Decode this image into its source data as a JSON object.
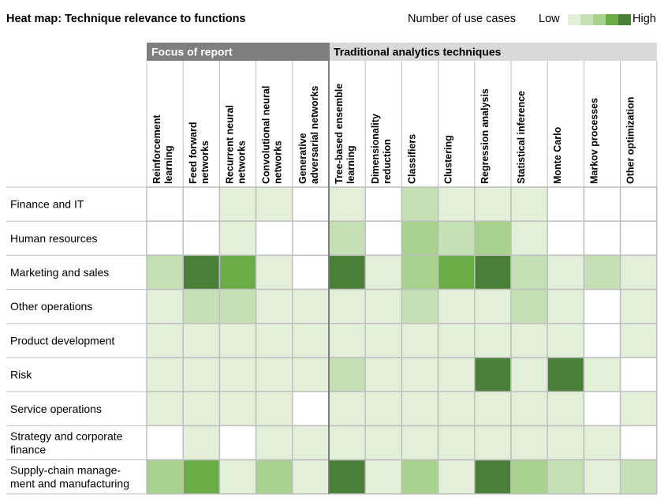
{
  "chart_data": {
    "type": "heatmap",
    "title": "Heat map: Technique relevance to functions",
    "legend": {
      "title": "Number of use cases",
      "low": "Low",
      "high": "High",
      "levels": [
        0,
        1,
        2,
        3,
        4,
        5
      ]
    },
    "column_groups": [
      {
        "label": "Focus of report",
        "span": 5
      },
      {
        "label": "Traditional analytics techniques",
        "span": 9
      }
    ],
    "columns": [
      [
        "Reinforcement",
        "learning"
      ],
      [
        "Feed forward",
        "networks"
      ],
      [
        "Recurrent neural",
        "networks"
      ],
      [
        "Convolutional neural",
        "networks"
      ],
      [
        "Generative",
        "adversarial networks"
      ],
      [
        "Tree-based ensemble",
        "learning"
      ],
      [
        "Dimensionality",
        "reduction"
      ],
      [
        "Classifiers"
      ],
      [
        "Clustering"
      ],
      [
        "Regression analysis"
      ],
      [
        "Statistical inference"
      ],
      [
        "Monte Carlo"
      ],
      [
        "Markov processes"
      ],
      [
        "Other optimization"
      ]
    ],
    "rows": [
      [
        "Finance and IT"
      ],
      [
        "Human resources"
      ],
      [
        "Marketing and sales"
      ],
      [
        "Other operations"
      ],
      [
        "Product development"
      ],
      [
        "Risk"
      ],
      [
        "Service operations"
      ],
      [
        "Strategy and corporate",
        "finance"
      ],
      [
        "Supply-chain manage-",
        "ment and manufacturing"
      ]
    ],
    "values": [
      [
        0,
        0,
        1,
        1,
        0,
        1,
        0,
        2,
        1,
        1,
        1,
        0,
        0,
        0
      ],
      [
        0,
        0,
        1,
        0,
        0,
        2,
        0,
        3,
        2,
        3,
        1,
        0,
        0,
        0
      ],
      [
        2,
        5,
        4,
        1,
        0,
        5,
        1,
        3,
        4,
        5,
        2,
        1,
        2,
        1
      ],
      [
        1,
        2,
        2,
        1,
        1,
        1,
        1,
        2,
        1,
        1,
        2,
        1,
        0,
        1
      ],
      [
        1,
        1,
        1,
        1,
        1,
        1,
        1,
        1,
        1,
        1,
        1,
        1,
        0,
        1
      ],
      [
        1,
        1,
        1,
        1,
        1,
        2,
        1,
        1,
        1,
        5,
        1,
        5,
        1,
        0
      ],
      [
        1,
        1,
        1,
        1,
        0,
        1,
        1,
        1,
        1,
        1,
        1,
        1,
        0,
        1
      ],
      [
        0,
        1,
        0,
        1,
        1,
        1,
        1,
        1,
        1,
        1,
        1,
        1,
        1,
        0
      ],
      [
        3,
        4,
        1,
        3,
        1,
        5,
        1,
        3,
        1,
        5,
        3,
        2,
        1,
        2
      ]
    ],
    "color_scale": [
      "#ffffff",
      "#e2efd9",
      "#c5e0b4",
      "#a9d18e",
      "#6aac46",
      "#4a7f37"
    ]
  }
}
